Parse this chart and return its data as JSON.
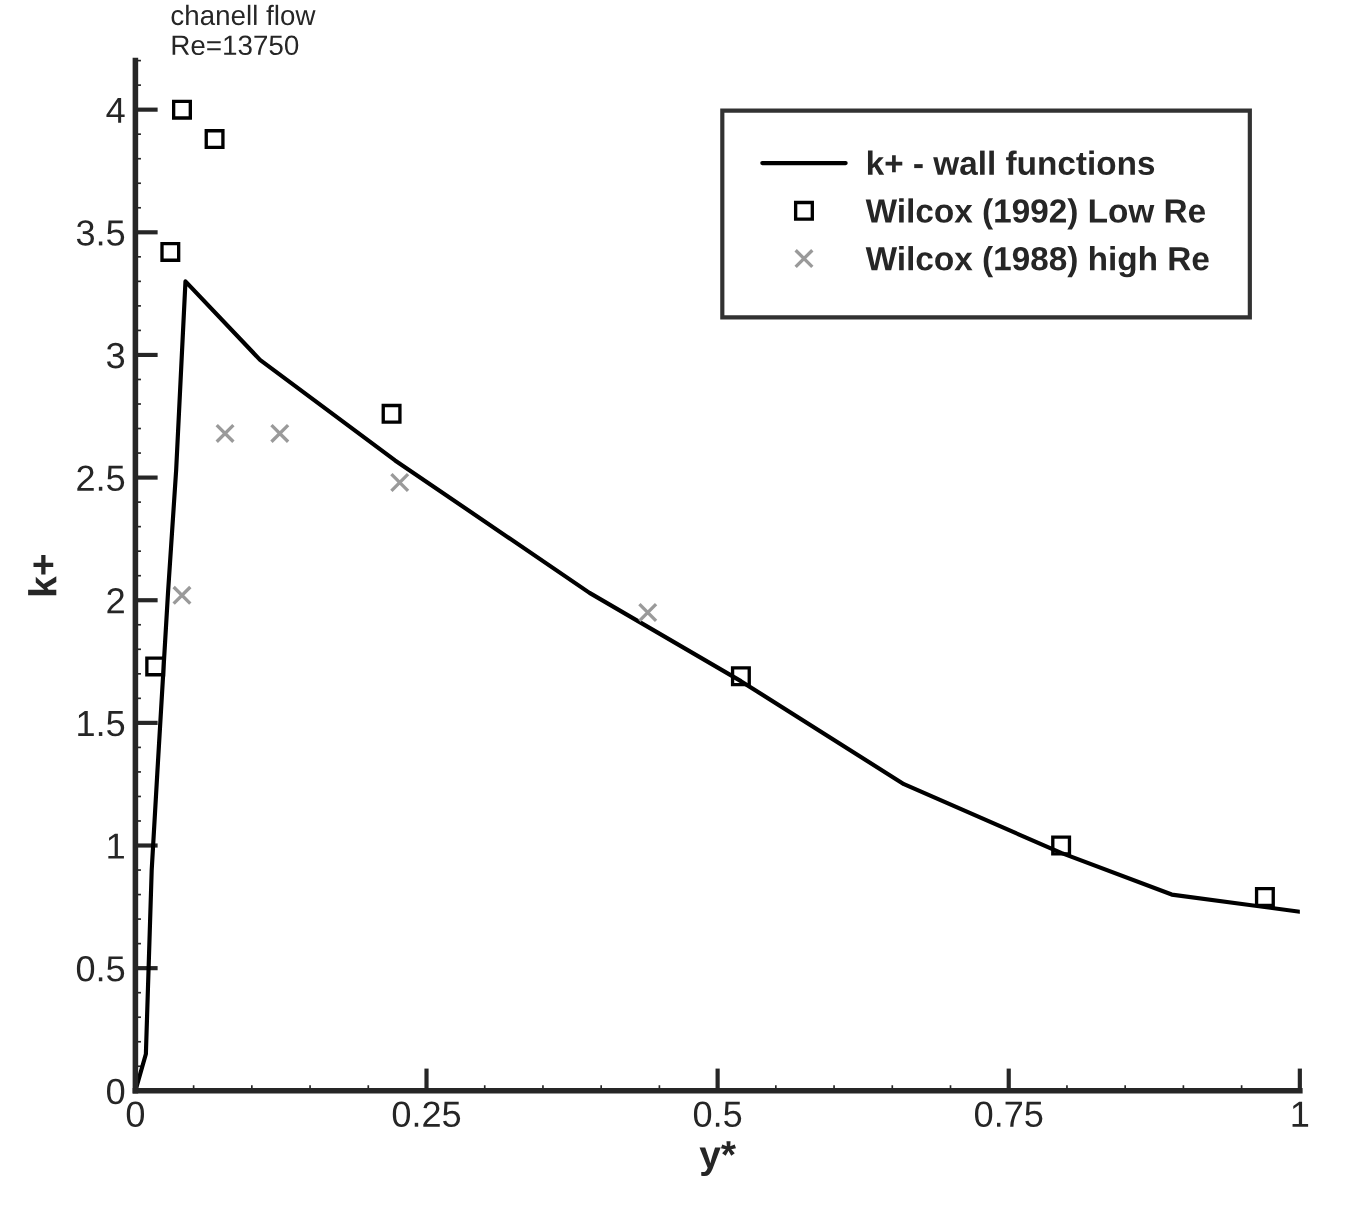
{
  "chart_data": {
    "type": "line",
    "xlabel": "y*",
    "ylabel": "k+",
    "annotations": [
      "chanell flow\nRe=13750"
    ],
    "series": [
      {
        "name": "k+ - wall functions",
        "color": "#000000",
        "marker": "none",
        "line_style": "solid",
        "x": [
          0,
          0.009,
          0.014,
          0.019,
          0.028,
          0.035,
          0.043,
          0.107,
          0.223,
          0.39,
          0.52,
          0.66,
          0.795,
          0.89,
          1.0
        ],
        "values": [
          0,
          0.15,
          0.9,
          1.31,
          2.03,
          2.53,
          3.3,
          2.98,
          2.57,
          2.03,
          1.67,
          1.25,
          0.97,
          0.8,
          0.73
        ]
      },
      {
        "name": "Wilcox (1992) Low Re",
        "type": "scatter",
        "color": "#000000",
        "marker": "square",
        "x": [
          0.04,
          0.068,
          0.03,
          0.22,
          0.017,
          0.52,
          0.795,
          0.97
        ],
        "values": [
          4.0,
          3.88,
          3.42,
          2.76,
          1.73,
          1.69,
          1.0,
          0.79
        ]
      },
      {
        "name": "Wilcox (1988) high Re",
        "type": "scatter",
        "color": "#9a9a9a",
        "marker": "cross",
        "x": [
          0.077,
          0.124,
          0.227,
          0.04,
          0.44
        ],
        "values": [
          2.68,
          2.68,
          2.48,
          2.02,
          1.95
        ]
      }
    ],
    "xlim": [
      0,
      1
    ],
    "xticks": [
      0,
      0.25,
      0.5,
      0.75,
      1
    ],
    "ylim": [
      0,
      4.2
    ],
    "yticks": [
      0,
      0.5,
      1,
      1.5,
      2,
      2.5,
      3,
      3.5,
      4
    ],
    "grid": false,
    "legend": "top right"
  }
}
